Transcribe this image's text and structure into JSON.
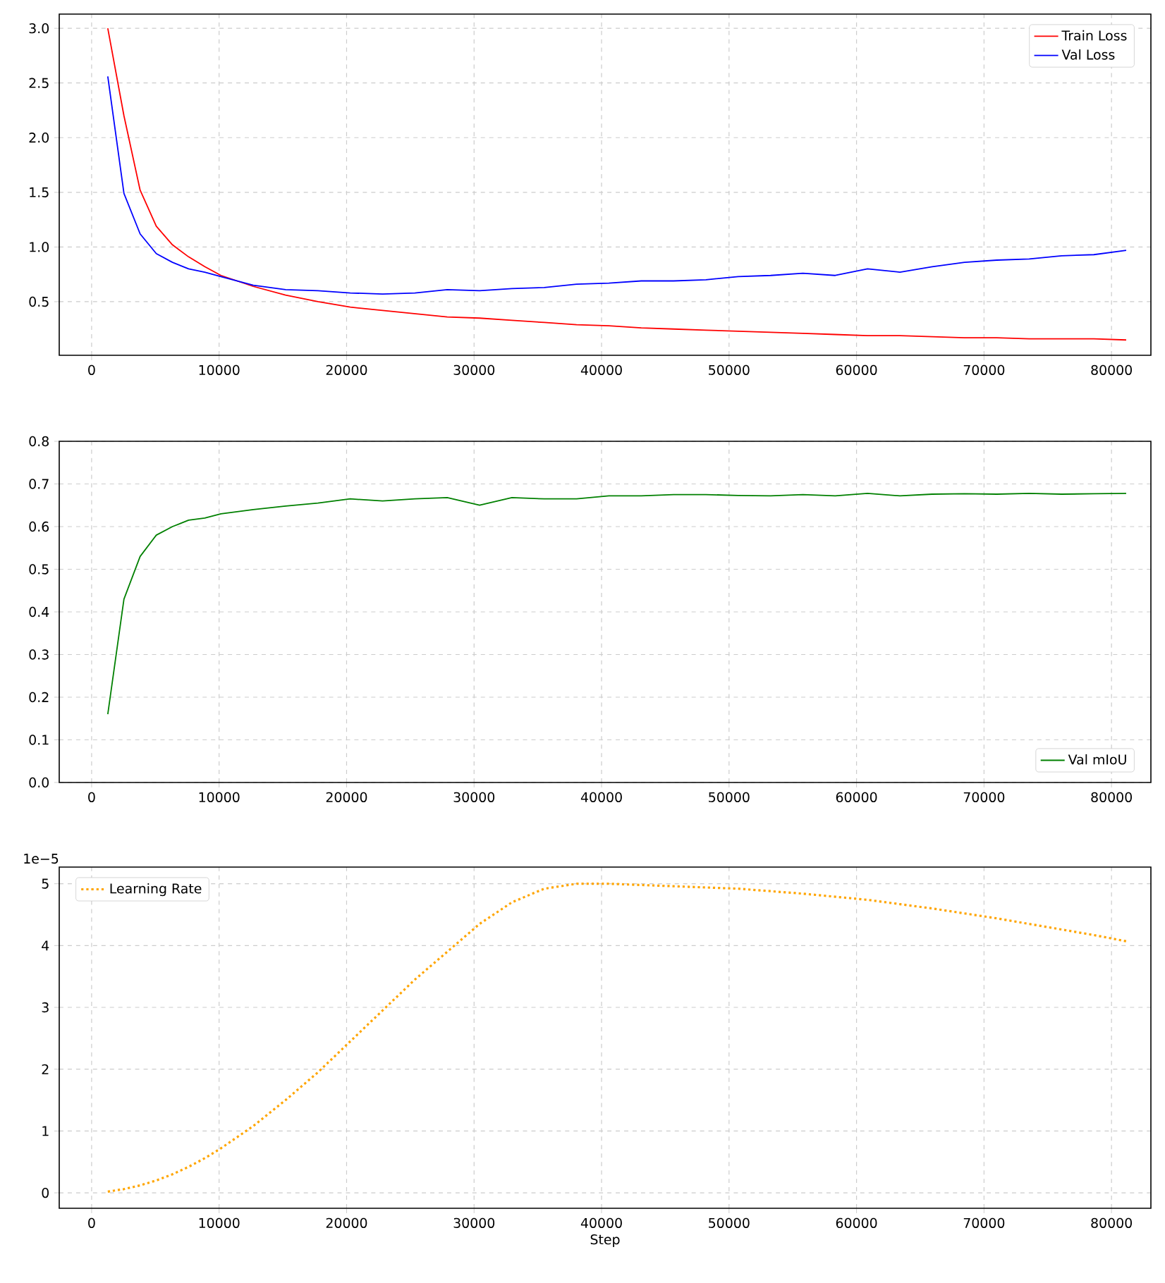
{
  "chart_data": [
    {
      "type": "line",
      "xlim": [
        -2540,
        83090
      ],
      "ylim": [
        0.01,
        3.13
      ],
      "xticks": [
        0,
        10000,
        20000,
        30000,
        40000,
        50000,
        60000,
        70000,
        80000
      ],
      "yticks": [
        {
          "value": 0.5,
          "label": "0.5"
        },
        {
          "value": 1.0,
          "label": "1.0"
        },
        {
          "value": 1.5,
          "label": "1.5"
        },
        {
          "value": 2.0,
          "label": "2.0"
        },
        {
          "value": 2.5,
          "label": "2.5"
        },
        {
          "value": 3.0,
          "label": "3.0"
        }
      ],
      "grid": true,
      "legend": "top right",
      "line_style": "solid",
      "x": [
        1268,
        2536,
        3804,
        5072,
        6340,
        7608,
        8876,
        10144,
        12680,
        15216,
        17752,
        20288,
        22824,
        25360,
        27896,
        30432,
        32968,
        35504,
        38040,
        40576,
        43112,
        45648,
        48184,
        50720,
        53256,
        55792,
        58328,
        60864,
        63400,
        65936,
        68472,
        71008,
        73544,
        76080,
        78616,
        81152
      ],
      "series": [
        {
          "name": "Train Loss",
          "color": "#ff0000",
          "values": [
            3.0,
            2.2,
            1.52,
            1.19,
            1.02,
            0.91,
            0.82,
            0.74,
            0.64,
            0.56,
            0.5,
            0.45,
            0.42,
            0.39,
            0.36,
            0.35,
            0.33,
            0.31,
            0.29,
            0.28,
            0.26,
            0.25,
            0.24,
            0.23,
            0.22,
            0.21,
            0.2,
            0.19,
            0.19,
            0.18,
            0.17,
            0.17,
            0.16,
            0.16,
            0.16,
            0.15
          ]
        },
        {
          "name": "Val Loss",
          "color": "#0000ff",
          "values": [
            2.56,
            1.49,
            1.12,
            0.94,
            0.86,
            0.8,
            0.77,
            0.73,
            0.65,
            0.61,
            0.6,
            0.58,
            0.57,
            0.58,
            0.61,
            0.6,
            0.62,
            0.63,
            0.66,
            0.67,
            0.69,
            0.69,
            0.7,
            0.73,
            0.74,
            0.76,
            0.74,
            0.8,
            0.77,
            0.82,
            0.86,
            0.88,
            0.89,
            0.92,
            0.93,
            0.97
          ]
        }
      ]
    },
    {
      "type": "line",
      "xlim": [
        -2540,
        83090
      ],
      "ylim": [
        0,
        0.8
      ],
      "xticks": [
        0,
        10000,
        20000,
        30000,
        40000,
        50000,
        60000,
        70000,
        80000
      ],
      "yticks": [
        {
          "value": 0,
          "label": "0.0"
        },
        0.1,
        0.2,
        0.3,
        0.4,
        0.5,
        0.6,
        0.7,
        0.8
      ],
      "grid": true,
      "legend": "bottom right",
      "line_style": "solid",
      "x": [
        1268,
        2536,
        3804,
        5072,
        6340,
        7608,
        8876,
        10144,
        12680,
        15216,
        17752,
        20288,
        22824,
        25360,
        27896,
        30432,
        32968,
        35504,
        38040,
        40576,
        43112,
        45648,
        48184,
        50720,
        53256,
        55792,
        58328,
        60864,
        63400,
        65936,
        68472,
        71008,
        73544,
        76080,
        78616,
        81152
      ],
      "series": [
        {
          "name": "Val mIoU",
          "color": "#008000",
          "values": [
            0.16,
            0.43,
            0.53,
            0.58,
            0.6,
            0.615,
            0.62,
            0.63,
            0.64,
            0.648,
            0.655,
            0.665,
            0.66,
            0.665,
            0.668,
            0.65,
            0.668,
            0.665,
            0.665,
            0.672,
            0.672,
            0.675,
            0.675,
            0.673,
            0.672,
            0.675,
            0.672,
            0.678,
            0.672,
            0.676,
            0.677,
            0.676,
            0.678,
            0.676,
            0.677,
            0.678
          ]
        }
      ]
    },
    {
      "type": "line",
      "xlabel": "Step",
      "annotations": [
        "1e−5"
      ],
      "xlim": [
        -2540,
        83090
      ],
      "ylim": [
        -0.25,
        5.27
      ],
      "xticks": [
        0,
        10000,
        20000,
        30000,
        40000,
        50000,
        60000,
        70000,
        80000
      ],
      "yticks": [
        0,
        1,
        2,
        3,
        4,
        5
      ],
      "grid": true,
      "legend": "top left",
      "line_style": "dotted",
      "x": [
        1268,
        2536,
        3804,
        5072,
        6340,
        7608,
        8876,
        10144,
        12680,
        15216,
        17752,
        20288,
        22824,
        25360,
        27896,
        30432,
        32968,
        35504,
        38040,
        40576,
        43112,
        45648,
        48184,
        50720,
        53256,
        55792,
        58328,
        60864,
        63400,
        65936,
        68472,
        71008,
        73544,
        76080,
        78616,
        81152
      ],
      "series": [
        {
          "name": "Learning Rate",
          "color": "#ffa500",
          "values": [
            0.02,
            0.06,
            0.12,
            0.2,
            0.3,
            0.42,
            0.56,
            0.72,
            1.08,
            1.5,
            1.95,
            2.45,
            2.95,
            3.45,
            3.9,
            4.35,
            4.7,
            4.92,
            5.0,
            5.0,
            4.98,
            4.96,
            4.94,
            4.92,
            4.88,
            4.84,
            4.79,
            4.74,
            4.67,
            4.6,
            4.52,
            4.44,
            4.35,
            4.26,
            4.17,
            4.07
          ]
        }
      ]
    }
  ]
}
